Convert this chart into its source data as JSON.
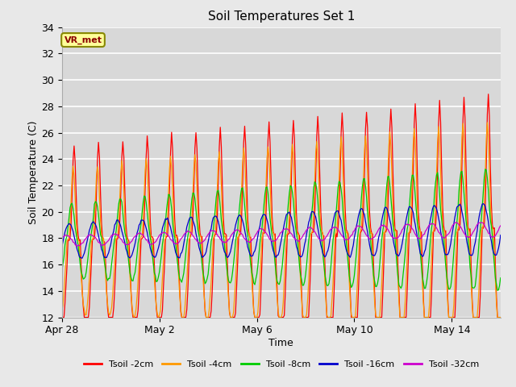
{
  "title": "Soil Temperatures Set 1",
  "xlabel": "Time",
  "ylabel": "Soil Temperature (C)",
  "ylim": [
    12,
    34
  ],
  "yticks": [
    12,
    14,
    16,
    18,
    20,
    22,
    24,
    26,
    28,
    30,
    32,
    34
  ],
  "background_color": "#e8e8e8",
  "plot_bg_color": "#d8d8d8",
  "annotation_text": "VR_met",
  "annotation_box_color": "#ffff99",
  "annotation_border_color": "#888800",
  "series_colors": [
    "#ff0000",
    "#ff9900",
    "#00cc00",
    "#0000cc",
    "#cc00cc"
  ],
  "series_labels": [
    "Tsoil -2cm",
    "Tsoil -4cm",
    "Tsoil -8cm",
    "Tsoil -16cm",
    "Tsoil -32cm"
  ],
  "xtick_labels": [
    "Apr 28",
    "May 2",
    "May 6",
    "May 10",
    "May 14"
  ],
  "xtick_positions": [
    0,
    4,
    8,
    12,
    16
  ],
  "total_days": 18,
  "dt": 0.04166666,
  "base_temp": 17.8,
  "base_rise": 0.05
}
